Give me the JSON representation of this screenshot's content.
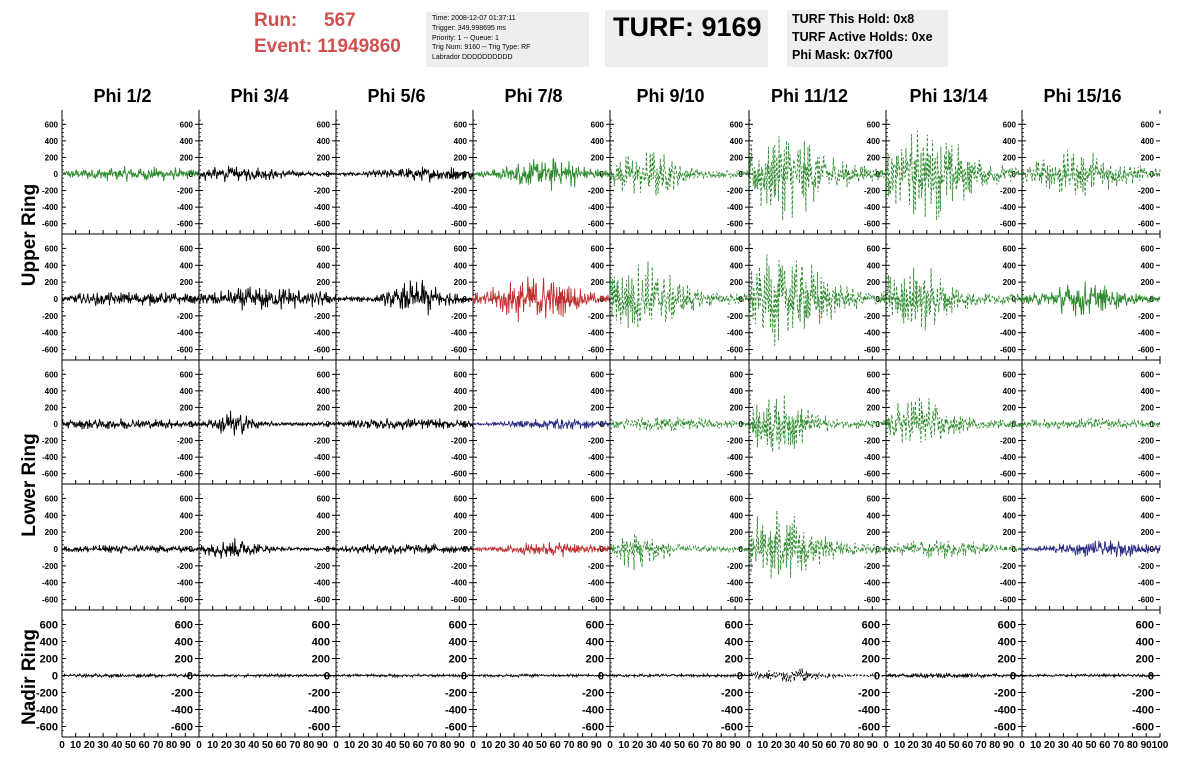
{
  "run_label": "Run:",
  "run_value": "567",
  "event_label": "Event:",
  "event_value": "11949860",
  "trigger_info": [
    "Time: 2008-12-07 01:37:11",
    "Trigger: 349.998695 ms",
    "Priority: 1 -- Queue: 1",
    "Trig Num: 9160 -- Trig Type: RF",
    "Labrador DDDDDDDDDD"
  ],
  "turf_title": "TURF: 9169",
  "turf_info": [
    "TURF This Hold: 0x8",
    "TURF Active Holds: 0xe",
    "Phi Mask: 0x7f00"
  ],
  "phi_headers": [
    "Phi 1/2",
    "Phi 3/4",
    "Phi 5/6",
    "Phi 7/8",
    "Phi 9/10",
    "Phi 11/12",
    "Phi 13/14",
    "Phi 15/16"
  ],
  "ring_labels": [
    "Upper Ring",
    "Lower Ring",
    "Nadir Ring"
  ],
  "colors": {
    "black": "#000000",
    "green": "#2e8b2e",
    "red": "#c03030",
    "blue": "#2a2a80"
  },
  "chart_data": {
    "type": "line",
    "description_units": "waveform amplitude vs time sample",
    "xlim": [
      0,
      100
    ],
    "ylim": [
      -700,
      700
    ],
    "x_ticks": [
      0,
      10,
      20,
      30,
      40,
      50,
      60,
      70,
      80,
      90,
      100
    ],
    "x_tick_labels": [
      "0",
      "10",
      "20",
      "30",
      "40",
      "50",
      "60",
      "70",
      "80",
      "90",
      "100"
    ],
    "y_ticks": [
      -600,
      -400,
      -200,
      0,
      200,
      400,
      600
    ],
    "y_tick_labels": [
      "-600",
      "-400",
      "-200",
      "0",
      "200",
      "400",
      "600"
    ],
    "rows": [
      {
        "panels": [
          {
            "color": "green",
            "dashed": false,
            "peak": 100,
            "center": 55,
            "width": 60
          },
          {
            "color": "black",
            "dashed": false,
            "peak": 110,
            "center": 25,
            "width": 40
          },
          {
            "color": "black",
            "dashed": false,
            "peak": 110,
            "center": 70,
            "width": 40
          },
          {
            "color": "green",
            "dashed": false,
            "peak": 230,
            "center": 55,
            "width": 30
          },
          {
            "color": "green",
            "dashed": true,
            "peak": 350,
            "center": 25,
            "width": 25
          },
          {
            "color": "green",
            "dashed": true,
            "peak": 580,
            "center": 25,
            "width": 35
          },
          {
            "color": "green",
            "dashed": true,
            "peak": 580,
            "center": 30,
            "width": 35
          },
          {
            "color": "green",
            "dashed": true,
            "peak": 300,
            "center": 40,
            "width": 40
          }
        ]
      },
      {
        "panels": [
          {
            "color": "black",
            "dashed": false,
            "peak": 100,
            "center": 50,
            "width": 60
          },
          {
            "color": "black",
            "dashed": false,
            "peak": 160,
            "center": 50,
            "width": 50
          },
          {
            "color": "black",
            "dashed": false,
            "peak": 260,
            "center": 60,
            "width": 20
          },
          {
            "color": "red",
            "dashed": false,
            "peak": 320,
            "center": 45,
            "width": 30
          },
          {
            "color": "green",
            "dashed": true,
            "peak": 500,
            "center": 22,
            "width": 30
          },
          {
            "color": "green",
            "dashed": true,
            "peak": 600,
            "center": 25,
            "width": 35
          },
          {
            "color": "green",
            "dashed": true,
            "peak": 450,
            "center": 20,
            "width": 30
          },
          {
            "color": "green",
            "dashed": false,
            "peak": 230,
            "center": 45,
            "width": 30
          }
        ]
      },
      {
        "panels": [
          {
            "color": "black",
            "dashed": false,
            "peak": 80,
            "center": 45,
            "width": 60
          },
          {
            "color": "black",
            "dashed": false,
            "peak": 180,
            "center": 25,
            "width": 15
          },
          {
            "color": "black",
            "dashed": false,
            "peak": 80,
            "center": 50,
            "width": 60
          },
          {
            "color": "blue",
            "dashed": false,
            "peak": 80,
            "center": 60,
            "width": 40
          },
          {
            "color": "green",
            "dashed": true,
            "peak": 100,
            "center": 40,
            "width": 50
          },
          {
            "color": "green",
            "dashed": true,
            "peak": 430,
            "center": 20,
            "width": 25
          },
          {
            "color": "green",
            "dashed": true,
            "peak": 380,
            "center": 25,
            "width": 25
          },
          {
            "color": "green",
            "dashed": true,
            "peak": 80,
            "center": 50,
            "width": 60
          }
        ]
      },
      {
        "panels": [
          {
            "color": "black",
            "dashed": false,
            "peak": 60,
            "center": 50,
            "width": 60
          },
          {
            "color": "black",
            "dashed": false,
            "peak": 160,
            "center": 25,
            "width": 20
          },
          {
            "color": "black",
            "dashed": false,
            "peak": 70,
            "center": 50,
            "width": 60
          },
          {
            "color": "red",
            "dashed": false,
            "peak": 100,
            "center": 60,
            "width": 40
          },
          {
            "color": "green",
            "dashed": true,
            "peak": 280,
            "center": 20,
            "width": 20
          },
          {
            "color": "green",
            "dashed": true,
            "peak": 500,
            "center": 20,
            "width": 30
          },
          {
            "color": "green",
            "dashed": true,
            "peak": 130,
            "center": 40,
            "width": 40
          },
          {
            "color": "blue",
            "dashed": false,
            "peak": 110,
            "center": 60,
            "width": 40
          }
        ]
      },
      {
        "panels": [
          {
            "color": "black",
            "dashed": false,
            "peak": 25,
            "center": 50,
            "width": 80
          },
          {
            "color": "black",
            "dashed": false,
            "peak": 20,
            "center": 50,
            "width": 80
          },
          {
            "color": "black",
            "dashed": false,
            "peak": 20,
            "center": 50,
            "width": 80
          },
          {
            "color": "black",
            "dashed": false,
            "peak": 20,
            "center": 50,
            "width": 80
          },
          {
            "color": "black",
            "dashed": false,
            "peak": 20,
            "center": 50,
            "width": 80
          },
          {
            "color": "black",
            "dashed": true,
            "peak": 100,
            "center": 30,
            "width": 25
          },
          {
            "color": "black",
            "dashed": false,
            "peak": 35,
            "center": 40,
            "width": 60
          },
          {
            "color": "black",
            "dashed": false,
            "peak": 20,
            "center": 50,
            "width": 80
          }
        ]
      }
    ]
  }
}
